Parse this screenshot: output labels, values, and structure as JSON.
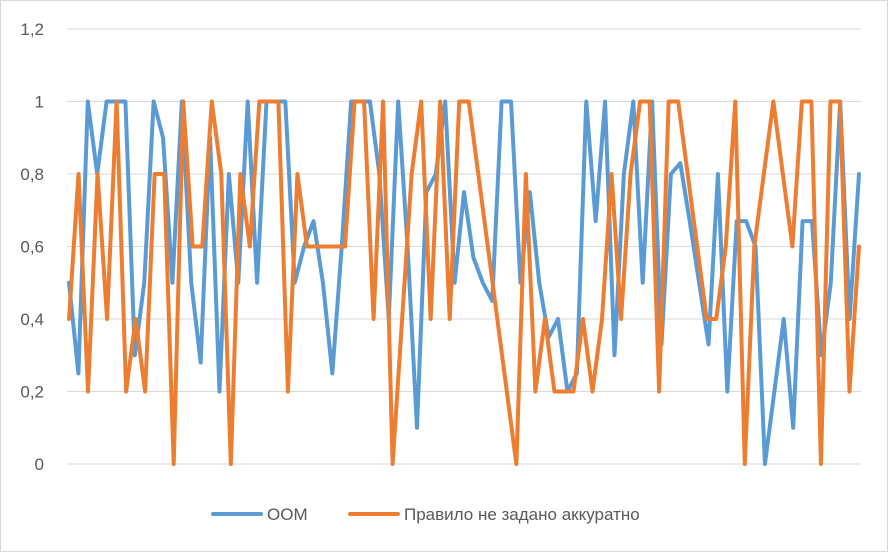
{
  "chart_data": {
    "type": "line",
    "title": "",
    "xlabel": "",
    "ylabel": "",
    "ylim": [
      0,
      1.2
    ],
    "yticks": [
      0,
      0.2,
      0.4,
      0.6,
      0.8,
      1.0,
      1.2
    ],
    "ytick_labels": [
      "0",
      "0,2",
      "0,4",
      "0,6",
      "0,8",
      "1",
      "1,2"
    ],
    "grid": "horizontal",
    "legend": "bottom",
    "series": [
      {
        "name": "ООМ",
        "color": "#5b9bd5",
        "values": [
          0.5,
          0.25,
          1.0,
          0.8,
          1.0,
          1.0,
          1.0,
          0.3,
          0.5,
          1.0,
          0.9,
          0.5,
          1.0,
          0.5,
          0.28,
          0.9,
          0.2,
          0.8,
          0.5,
          1.0,
          0.5,
          1.0,
          1.0,
          1.0,
          0.5,
          0.6,
          0.67,
          0.5,
          0.25,
          0.6,
          1.0,
          1.0,
          1.0,
          0.8,
          0.4,
          1.0,
          0.6,
          0.1,
          0.75,
          0.8,
          1.0,
          0.5,
          0.75,
          0.57,
          0.5,
          0.45,
          1.0,
          1.0,
          0.5,
          0.75,
          0.5,
          0.35,
          0.4,
          0.2,
          0.25,
          1.0,
          0.67,
          1.0,
          0.3,
          0.8,
          1.0,
          0.5,
          1.0,
          0.33,
          0.8,
          0.83,
          0.67,
          0.5,
          0.33,
          0.8,
          0.2,
          0.67,
          0.67,
          0.6,
          0.0,
          0.2,
          0.4,
          0.1,
          0.67,
          0.67,
          0.3,
          0.5,
          1.0,
          0.4,
          0.8
        ]
      },
      {
        "name": "Правило не задано аккуратно",
        "color": "#ed7d31",
        "values": [
          0.4,
          0.8,
          0.2,
          0.8,
          0.4,
          1.0,
          0.2,
          0.4,
          0.2,
          0.8,
          0.8,
          0.0,
          1.0,
          0.6,
          0.6,
          1.0,
          0.8,
          0.0,
          0.8,
          0.6,
          1.0,
          1.0,
          1.0,
          0.2,
          0.8,
          0.6,
          0.6,
          0.6,
          0.6,
          0.6,
          1.0,
          1.0,
          0.4,
          1.0,
          0.0,
          0.4,
          0.8,
          1.0,
          0.4,
          1.0,
          0.4,
          1.0,
          1.0,
          0.8,
          0.6,
          0.4,
          0.2,
          0.0,
          0.8,
          0.2,
          0.4,
          0.2,
          0.2,
          0.2,
          0.4,
          0.2,
          0.4,
          0.8,
          0.4,
          0.8,
          1.0,
          1.0,
          0.2,
          1.0,
          1.0,
          0.8,
          0.6,
          0.4,
          0.4,
          0.6,
          1.0,
          0.0,
          0.6,
          0.8,
          1.0,
          0.8,
          0.6,
          1.0,
          1.0,
          0.0,
          1.0,
          1.0,
          0.2,
          0.6
        ]
      }
    ]
  }
}
